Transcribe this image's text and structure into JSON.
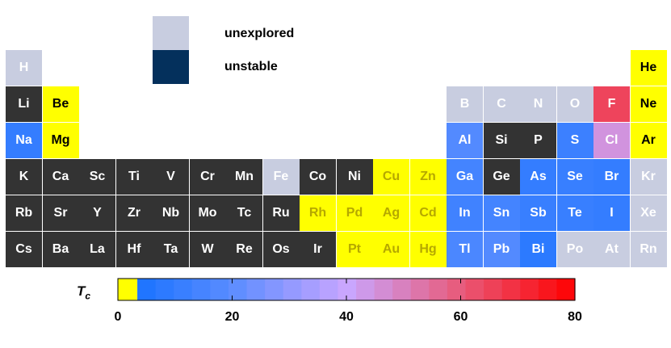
{
  "legend": [
    {
      "label": "unexplored",
      "color": "#c8cde0"
    },
    {
      "label": "unstable",
      "color": "#04305c"
    }
  ],
  "colors": {
    "unexplored": "#c8cde0",
    "non_superconducting": "#333333",
    "low_tc": "#ffff00",
    "low_tc_edge": "#cfcf00"
  },
  "chart_data": {
    "type": "heatmap",
    "title": "",
    "colorbar": {
      "label": "T",
      "label_sub": "c",
      "range": [
        0,
        80
      ],
      "ticks": [
        0,
        20,
        40,
        60,
        80
      ],
      "tick_labels": [
        "0",
        "20",
        "40",
        "60",
        "80"
      ],
      "stops": [
        {
          "value": 0,
          "color": "#ffff00"
        },
        {
          "value": 3.4,
          "color": "#ffff00"
        },
        {
          "value": 3.4,
          "color": "#1a73ff"
        },
        {
          "value": 20,
          "color": "#5b8dff"
        },
        {
          "value": 40,
          "color": "#c9a6ff"
        },
        {
          "value": 60,
          "color": "#e85a7a"
        },
        {
          "value": 80,
          "color": "#ff0000"
        }
      ]
    },
    "elements": [
      {
        "symbol": "H",
        "row": 0,
        "col": 0,
        "status": "unexplored"
      },
      {
        "symbol": "He",
        "row": 0,
        "col": 17,
        "status": "low_tc"
      },
      {
        "symbol": "Li",
        "row": 1,
        "col": 0,
        "status": "non_superconducting"
      },
      {
        "symbol": "Be",
        "row": 1,
        "col": 1,
        "status": "low_tc"
      },
      {
        "symbol": "B",
        "row": 1,
        "col": 12,
        "status": "unexplored"
      },
      {
        "symbol": "C",
        "row": 1,
        "col": 13,
        "status": "unexplored"
      },
      {
        "symbol": "N",
        "row": 1,
        "col": 14,
        "status": "unexplored"
      },
      {
        "symbol": "O",
        "row": 1,
        "col": 15,
        "status": "unexplored"
      },
      {
        "symbol": "F",
        "row": 1,
        "col": 16,
        "status": "tc",
        "tc": 65
      },
      {
        "symbol": "Ne",
        "row": 1,
        "col": 17,
        "status": "low_tc"
      },
      {
        "symbol": "Na",
        "row": 2,
        "col": 0,
        "status": "tc",
        "tc": 10
      },
      {
        "symbol": "Mg",
        "row": 2,
        "col": 1,
        "status": "low_tc"
      },
      {
        "symbol": "Al",
        "row": 2,
        "col": 12,
        "status": "tc",
        "tc": 18
      },
      {
        "symbol": "Si",
        "row": 2,
        "col": 13,
        "status": "non_superconducting"
      },
      {
        "symbol": "P",
        "row": 2,
        "col": 14,
        "status": "non_superconducting"
      },
      {
        "symbol": "S",
        "row": 2,
        "col": 15,
        "status": "tc",
        "tc": 12
      },
      {
        "symbol": "Cl",
        "row": 2,
        "col": 16,
        "status": "tc",
        "tc": 45
      },
      {
        "symbol": "Ar",
        "row": 2,
        "col": 17,
        "status": "low_tc"
      },
      {
        "symbol": "K",
        "row": 3,
        "col": 0,
        "status": "non_superconducting"
      },
      {
        "symbol": "Ca",
        "row": 3,
        "col": 1,
        "status": "non_superconducting"
      },
      {
        "symbol": "Sc",
        "row": 3,
        "col": 2,
        "status": "non_superconducting"
      },
      {
        "symbol": "Ti",
        "row": 3,
        "col": 3,
        "status": "non_superconducting"
      },
      {
        "symbol": "V",
        "row": 3,
        "col": 4,
        "status": "non_superconducting"
      },
      {
        "symbol": "Cr",
        "row": 3,
        "col": 5,
        "status": "non_superconducting"
      },
      {
        "symbol": "Mn",
        "row": 3,
        "col": 6,
        "status": "non_superconducting"
      },
      {
        "symbol": "Fe",
        "row": 3,
        "col": 7,
        "status": "unexplored"
      },
      {
        "symbol": "Co",
        "row": 3,
        "col": 8,
        "status": "non_superconducting"
      },
      {
        "symbol": "Ni",
        "row": 3,
        "col": 9,
        "status": "non_superconducting"
      },
      {
        "symbol": "Cu",
        "row": 3,
        "col": 10,
        "status": "low_tc"
      },
      {
        "symbol": "Zn",
        "row": 3,
        "col": 11,
        "status": "low_tc"
      },
      {
        "symbol": "Ga",
        "row": 3,
        "col": 12,
        "status": "tc",
        "tc": 14
      },
      {
        "symbol": "Ge",
        "row": 3,
        "col": 13,
        "status": "non_superconducting"
      },
      {
        "symbol": "As",
        "row": 3,
        "col": 14,
        "status": "tc",
        "tc": 10
      },
      {
        "symbol": "Se",
        "row": 3,
        "col": 15,
        "status": "tc",
        "tc": 11
      },
      {
        "symbol": "Br",
        "row": 3,
        "col": 16,
        "status": "tc",
        "tc": 10
      },
      {
        "symbol": "Kr",
        "row": 3,
        "col": 17,
        "status": "unexplored"
      },
      {
        "symbol": "Rb",
        "row": 4,
        "col": 0,
        "status": "non_superconducting"
      },
      {
        "symbol": "Sr",
        "row": 4,
        "col": 1,
        "status": "non_superconducting"
      },
      {
        "symbol": "Y",
        "row": 4,
        "col": 2,
        "status": "non_superconducting"
      },
      {
        "symbol": "Zr",
        "row": 4,
        "col": 3,
        "status": "non_superconducting"
      },
      {
        "symbol": "Nb",
        "row": 4,
        "col": 4,
        "status": "non_superconducting"
      },
      {
        "symbol": "Mo",
        "row": 4,
        "col": 5,
        "status": "non_superconducting"
      },
      {
        "symbol": "Tc",
        "row": 4,
        "col": 6,
        "status": "non_superconducting"
      },
      {
        "symbol": "Ru",
        "row": 4,
        "col": 7,
        "status": "non_superconducting"
      },
      {
        "symbol": "Rh",
        "row": 4,
        "col": 8,
        "status": "low_tc"
      },
      {
        "symbol": "Pd",
        "row": 4,
        "col": 9,
        "status": "low_tc"
      },
      {
        "symbol": "Ag",
        "row": 4,
        "col": 10,
        "status": "low_tc"
      },
      {
        "symbol": "Cd",
        "row": 4,
        "col": 11,
        "status": "low_tc"
      },
      {
        "symbol": "In",
        "row": 4,
        "col": 12,
        "status": "tc",
        "tc": 13
      },
      {
        "symbol": "Sn",
        "row": 4,
        "col": 13,
        "status": "tc",
        "tc": 14
      },
      {
        "symbol": "Sb",
        "row": 4,
        "col": 14,
        "status": "tc",
        "tc": 11
      },
      {
        "symbol": "Te",
        "row": 4,
        "col": 15,
        "status": "tc",
        "tc": 11
      },
      {
        "symbol": "I",
        "row": 4,
        "col": 16,
        "status": "tc",
        "tc": 10
      },
      {
        "symbol": "Xe",
        "row": 4,
        "col": 17,
        "status": "unexplored"
      },
      {
        "symbol": "Cs",
        "row": 5,
        "col": 0,
        "status": "non_superconducting"
      },
      {
        "symbol": "Ba",
        "row": 5,
        "col": 1,
        "status": "non_superconducting"
      },
      {
        "symbol": "La",
        "row": 5,
        "col": 2,
        "status": "non_superconducting"
      },
      {
        "symbol": "Hf",
        "row": 5,
        "col": 3,
        "status": "non_superconducting"
      },
      {
        "symbol": "Ta",
        "row": 5,
        "col": 4,
        "status": "non_superconducting"
      },
      {
        "symbol": "W",
        "row": 5,
        "col": 5,
        "status": "non_superconducting"
      },
      {
        "symbol": "Re",
        "row": 5,
        "col": 6,
        "status": "non_superconducting"
      },
      {
        "symbol": "Os",
        "row": 5,
        "col": 7,
        "status": "non_superconducting"
      },
      {
        "symbol": "Ir",
        "row": 5,
        "col": 8,
        "status": "non_superconducting"
      },
      {
        "symbol": "Pt",
        "row": 5,
        "col": 9,
        "status": "low_tc"
      },
      {
        "symbol": "Au",
        "row": 5,
        "col": 10,
        "status": "low_tc"
      },
      {
        "symbol": "Hg",
        "row": 5,
        "col": 11,
        "status": "low_tc"
      },
      {
        "symbol": "Tl",
        "row": 5,
        "col": 12,
        "status": "tc",
        "tc": 16
      },
      {
        "symbol": "Pb",
        "row": 5,
        "col": 13,
        "status": "tc",
        "tc": 18
      },
      {
        "symbol": "Bi",
        "row": 5,
        "col": 14,
        "status": "tc",
        "tc": 8
      },
      {
        "symbol": "Po",
        "row": 5,
        "col": 15,
        "status": "unexplored"
      },
      {
        "symbol": "At",
        "row": 5,
        "col": 16,
        "status": "unexplored"
      },
      {
        "symbol": "Rn",
        "row": 5,
        "col": 17,
        "status": "unexplored"
      }
    ]
  }
}
